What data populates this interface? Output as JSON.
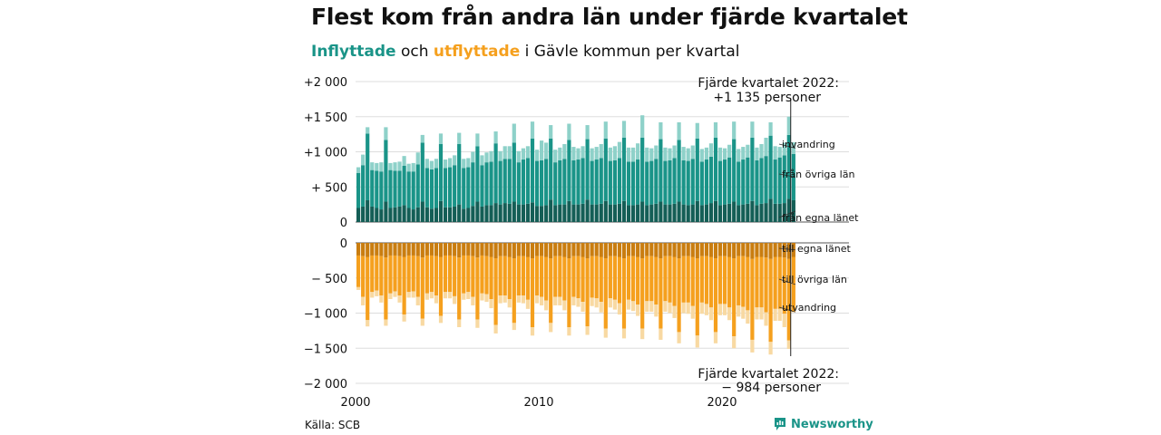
{
  "header": {
    "title": "Flest kom från andra län under fjärde kvartalet",
    "subtitle_in": "Inflyttade",
    "subtitle_mid": " och ",
    "subtitle_out": "utflyttade",
    "subtitle_rest": " i Gävle kommun per kvartal"
  },
  "footer": {
    "source": "Källa: SCB",
    "brand": "Newsworthy"
  },
  "colors": {
    "in_own": "#145e56",
    "in_other": "#1a9488",
    "in_immig": "#8ed1c9",
    "out_own": "#c97d10",
    "out_other": "#f5a01e",
    "out_emig": "#f8d9a2",
    "grid": "#dddddd"
  },
  "chart_data": {
    "type": "bar",
    "stacked": true,
    "x_start_year": 2000,
    "quarters_per_year": 4,
    "xticks": [
      2000,
      2010,
      2020
    ],
    "xtick_labels": [
      "2000",
      "2010",
      "2020"
    ],
    "upper_panel": {
      "yticks": [
        0,
        500,
        1000,
        1500,
        2000
      ],
      "ytick_labels": [
        "0",
        "+  500",
        "+1 000",
        "+1 500",
        "+2 000"
      ],
      "ylim": [
        0,
        2000
      ],
      "series": [
        {
          "name": "från egna länet",
          "values": [
            200,
            220,
            310,
            220,
            200,
            180,
            290,
            200,
            210,
            220,
            240,
            200,
            180,
            210,
            290,
            210,
            190,
            200,
            300,
            210,
            210,
            220,
            250,
            190,
            200,
            230,
            290,
            220,
            240,
            240,
            270,
            250,
            270,
            260,
            290,
            250,
            250,
            260,
            280,
            230,
            230,
            240,
            320,
            240,
            250,
            250,
            300,
            250,
            250,
            260,
            320,
            250,
            250,
            260,
            300,
            250,
            250,
            260,
            300,
            240,
            240,
            250,
            290,
            240,
            250,
            260,
            290,
            250,
            250,
            260,
            290,
            250,
            240,
            250,
            300,
            240,
            250,
            270,
            300,
            240,
            250,
            260,
            290,
            240,
            250,
            260,
            300,
            240,
            260,
            270,
            330,
            260,
            260,
            270,
            330,
            310
          ]
        },
        {
          "name": "från övriga län",
          "values": [
            500,
            590,
            950,
            520,
            530,
            540,
            880,
            540,
            520,
            510,
            560,
            520,
            540,
            610,
            840,
            560,
            560,
            570,
            810,
            560,
            570,
            590,
            860,
            580,
            580,
            620,
            790,
            590,
            610,
            620,
            850,
            620,
            630,
            640,
            840,
            600,
            640,
            650,
            910,
            640,
            650,
            660,
            870,
            610,
            630,
            650,
            870,
            630,
            640,
            650,
            860,
            620,
            640,
            650,
            890,
            620,
            630,
            650,
            900,
            620,
            620,
            640,
            910,
            620,
            620,
            640,
            890,
            620,
            630,
            650,
            880,
            630,
            630,
            650,
            890,
            620,
            640,
            660,
            900,
            630,
            640,
            660,
            890,
            620,
            640,
            660,
            900,
            640,
            650,
            670,
            900,
            630,
            660,
            680,
            910,
            660
          ]
        },
        {
          "name": "invandring",
          "values": [
            80,
            150,
            90,
            110,
            110,
            130,
            180,
            100,
            120,
            130,
            140,
            110,
            120,
            170,
            110,
            130,
            120,
            130,
            150,
            120,
            130,
            140,
            160,
            130,
            130,
            150,
            180,
            140,
            140,
            150,
            170,
            140,
            180,
            180,
            270,
            160,
            160,
            170,
            240,
            160,
            280,
            230,
            190,
            180,
            180,
            210,
            230,
            190,
            160,
            170,
            200,
            180,
            180,
            200,
            240,
            190,
            200,
            230,
            240,
            200,
            200,
            230,
            320,
            200,
            180,
            190,
            240,
            190,
            170,
            180,
            250,
            190,
            180,
            190,
            220,
            180,
            170,
            190,
            220,
            190,
            160,
            180,
            250,
            180,
            180,
            180,
            230,
            180,
            200,
            260,
            190,
            190,
            150,
            180,
            260,
            165
          ]
        }
      ]
    },
    "lower_panel": {
      "yticks": [
        0,
        -500,
        -1000,
        -1500,
        -2000
      ],
      "ytick_labels": [
        "0",
        "−  500",
        "−1 000",
        "−1 500",
        "−2 000"
      ],
      "ylim": [
        -2000,
        0
      ],
      "series": [
        {
          "name": "till egna länet",
          "values": [
            -180,
            -190,
            -200,
            -180,
            -180,
            -190,
            -210,
            -180,
            -180,
            -190,
            -200,
            -180,
            -180,
            -190,
            -210,
            -180,
            -180,
            -190,
            -200,
            -180,
            -180,
            -190,
            -210,
            -180,
            -180,
            -190,
            -210,
            -180,
            -190,
            -200,
            -220,
            -190,
            -190,
            -200,
            -220,
            -190,
            -190,
            -200,
            -220,
            -190,
            -190,
            -200,
            -220,
            -190,
            -190,
            -200,
            -220,
            -190,
            -190,
            -200,
            -220,
            -190,
            -190,
            -200,
            -220,
            -190,
            -190,
            -200,
            -220,
            -190,
            -190,
            -200,
            -220,
            -190,
            -190,
            -200,
            -220,
            -190,
            -190,
            -200,
            -220,
            -190,
            -190,
            -200,
            -220,
            -190,
            -190,
            -200,
            -220,
            -190,
            -190,
            -200,
            -220,
            -190,
            -190,
            -200,
            -230,
            -200,
            -200,
            -210,
            -230,
            -200,
            -200,
            -210,
            -230,
            -200
          ]
        },
        {
          "name": "till övriga län",
          "values": [
            -450,
            -580,
            -900,
            -520,
            -500,
            -560,
            -880,
            -540,
            -510,
            -560,
            -820,
            -520,
            -510,
            -580,
            -870,
            -540,
            -520,
            -560,
            -840,
            -520,
            -520,
            -570,
            -880,
            -540,
            -520,
            -580,
            -880,
            -540,
            -540,
            -600,
            -950,
            -560,
            -560,
            -600,
            -920,
            -560,
            -560,
            -610,
            -980,
            -560,
            -580,
            -620,
            -920,
            -580,
            -580,
            -620,
            -980,
            -580,
            -600,
            -640,
            -970,
            -590,
            -600,
            -640,
            -1000,
            -600,
            -620,
            -660,
            -1000,
            -620,
            -640,
            -680,
            -1000,
            -640,
            -640,
            -680,
            -1000,
            -640,
            -660,
            -700,
            -1050,
            -660,
            -660,
            -700,
            -1100,
            -660,
            -680,
            -720,
            -1050,
            -680,
            -680,
            -720,
            -1110,
            -700,
            -720,
            -760,
            -1150,
            -720,
            -720,
            -780,
            -1180,
            -740,
            -740,
            -800,
            -1160,
            -784
          ]
        },
        {
          "name": "utvandring",
          "values": [
            -40,
            -120,
            -90,
            -80,
            -80,
            -100,
            -90,
            -80,
            -80,
            -100,
            -100,
            -80,
            -90,
            -120,
            -100,
            -90,
            -90,
            -110,
            -100,
            -90,
            -90,
            -110,
            -110,
            -90,
            -100,
            -120,
            -120,
            -100,
            -110,
            -130,
            -120,
            -110,
            -100,
            -120,
            -100,
            -100,
            -110,
            -130,
            -120,
            -110,
            -120,
            -140,
            -130,
            -120,
            -120,
            -140,
            -120,
            -120,
            -120,
            -140,
            -120,
            -120,
            -130,
            -150,
            -130,
            -130,
            -140,
            -160,
            -140,
            -140,
            -140,
            -160,
            -150,
            -150,
            -150,
            -170,
            -160,
            -150,
            -150,
            -170,
            -160,
            -150,
            -160,
            -180,
            -170,
            -160,
            -160,
            -180,
            -160,
            -160,
            -160,
            -180,
            -170,
            -160,
            -170,
            -190,
            -180,
            -170,
            -170,
            -190,
            -180,
            -170,
            -170,
            -190,
            -120,
            0
          ]
        }
      ]
    },
    "annotations": {
      "top": [
        "Fjärde kvartalet 2022:",
        "+1 135 personer"
      ],
      "bottom": [
        "Fjärde kvartalet 2022:",
        "−  984 personer"
      ]
    },
    "grid": true,
    "legend": "inline-right"
  }
}
